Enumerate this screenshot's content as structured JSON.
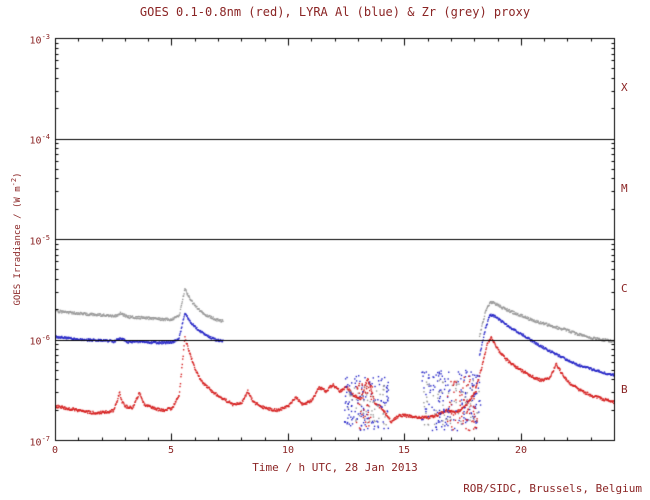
{
  "footer": "ROB/SIDC, Brussels, Belgium",
  "chart_data": {
    "type": "scatter",
    "title": "GOES 0.1-0.8nm (red), LYRA Al (blue) & Zr (grey) proxy",
    "xlabel": "Time / h UTC, 28 Jan 2013",
    "ylabel_pre": "GOES Irradiance / (W m",
    "ylabel_sup": "-2",
    "ylabel_post": ")",
    "xlim": [
      0,
      24
    ],
    "ylim_log10": [
      -7,
      -3
    ],
    "x_major_ticks": [
      0,
      5,
      10,
      15,
      20
    ],
    "x_minor_step": 1,
    "y_ticks": [
      {
        "base": "10",
        "exp": "-3"
      },
      {
        "base": "10",
        "exp": "-4"
      },
      {
        "base": "10",
        "exp": "-5"
      },
      {
        "base": "10",
        "exp": "-6"
      },
      {
        "base": "10",
        "exp": "-7"
      }
    ],
    "hlines_log10": [
      -4,
      -5,
      -6
    ],
    "flare_classes": [
      {
        "label": "X"
      },
      {
        "label": "M"
      },
      {
        "label": "C"
      },
      {
        "label": "B"
      }
    ],
    "colors": {
      "goes": "#d62020",
      "al": "#2929c8",
      "zr": "#9a9a9a",
      "text": "#8b2525",
      "axis": "#000000"
    },
    "series": [
      {
        "name": "GOES 0.1-0.8nm",
        "color_key": "goes",
        "jitter": 0.014,
        "segments": [
          [
            [
              0,
              2.2e-07
            ],
            [
              0.5,
              2.1e-07
            ],
            [
              1,
              2e-07
            ],
            [
              1.5,
              1.9e-07
            ],
            [
              2,
              1.9e-07
            ],
            [
              2.5,
              2e-07
            ],
            [
              2.75,
              3e-07
            ],
            [
              2.85,
              2.4e-07
            ],
            [
              3.0,
              2.2e-07
            ],
            [
              3.3,
              2.1e-07
            ],
            [
              3.6,
              3e-07
            ],
            [
              3.8,
              2.3e-07
            ],
            [
              4.2,
              2.1e-07
            ],
            [
              4.6,
              2e-07
            ],
            [
              5.0,
              2.1e-07
            ],
            [
              5.3,
              2.8e-07
            ],
            [
              5.55,
              1.06e-06
            ],
            [
              5.75,
              7.5e-07
            ],
            [
              6.0,
              5e-07
            ],
            [
              6.3,
              3.8e-07
            ],
            [
              6.7,
              3.1e-07
            ],
            [
              7.1,
              2.7e-07
            ],
            [
              7.6,
              2.3e-07
            ],
            [
              8.0,
              2.4e-07
            ],
            [
              8.25,
              3.1e-07
            ],
            [
              8.5,
              2.4e-07
            ],
            [
              9.0,
              2.1e-07
            ],
            [
              9.5,
              2e-07
            ],
            [
              10.0,
              2.2e-07
            ],
            [
              10.3,
              2.7e-07
            ],
            [
              10.6,
              2.3e-07
            ],
            [
              11.0,
              2.5e-07
            ],
            [
              11.3,
              3.4e-07
            ],
            [
              11.6,
              3.1e-07
            ],
            [
              11.9,
              3.6e-07
            ],
            [
              12.2,
              3.1e-07
            ],
            [
              12.5,
              3.4e-07
            ],
            [
              12.8,
              2.8e-07
            ],
            [
              13.1,
              2.6e-07
            ],
            [
              13.4,
              4.2e-07
            ],
            [
              13.7,
              2.4e-07
            ],
            [
              14.0,
              2.1e-07
            ],
            [
              14.4,
              1.55e-07
            ],
            [
              14.8,
              1.8e-07
            ],
            [
              15.2,
              1.75e-07
            ],
            [
              15.6,
              1.7e-07
            ],
            [
              16.0,
              1.7e-07
            ],
            [
              16.4,
              1.8e-07
            ],
            [
              16.8,
              2e-07
            ],
            [
              17.2,
              1.9e-07
            ],
            [
              17.6,
              2.2e-07
            ],
            [
              18.0,
              3e-07
            ],
            [
              18.3,
              5.5e-07
            ],
            [
              18.55,
              9.5e-07
            ],
            [
              18.7,
              1.06e-06
            ],
            [
              19.0,
              8e-07
            ],
            [
              19.3,
              6.6e-07
            ],
            [
              19.7,
              5.5e-07
            ],
            [
              20.0,
              5e-07
            ],
            [
              20.4,
              4.4e-07
            ],
            [
              20.8,
              4e-07
            ],
            [
              21.2,
              4.1e-07
            ],
            [
              21.5,
              5.8e-07
            ],
            [
              21.8,
              4.4e-07
            ],
            [
              22.1,
              3.7e-07
            ],
            [
              22.5,
              3.2e-07
            ],
            [
              23.0,
              2.8e-07
            ],
            [
              23.5,
              2.6e-07
            ],
            [
              24,
              2.4e-07
            ]
          ]
        ]
      },
      {
        "name": "LYRA Al proxy",
        "color_key": "al",
        "jitter": 0.011,
        "segments": [
          [
            [
              0,
              1.08e-06
            ],
            [
              0.5,
              1.05e-06
            ],
            [
              1,
              1.02e-06
            ],
            [
              1.5,
              1e-06
            ],
            [
              2,
              1e-06
            ],
            [
              2.5,
              9.7e-07
            ],
            [
              2.8,
              1.05e-06
            ],
            [
              3.1,
              9.6e-07
            ],
            [
              3.6,
              9.7e-07
            ],
            [
              4.0,
              9.5e-07
            ],
            [
              4.5,
              9.4e-07
            ],
            [
              5.0,
              9.5e-07
            ],
            [
              5.3,
              1.05e-06
            ],
            [
              5.55,
              1.85e-06
            ],
            [
              5.8,
              1.5e-06
            ],
            [
              6.1,
              1.28e-06
            ],
            [
              6.5,
              1.1e-06
            ],
            [
              6.9,
              1e-06
            ],
            [
              7.2,
              9.8e-07
            ]
          ],
          [
            [
              18.2,
              7e-07
            ],
            [
              18.45,
              1.3e-06
            ],
            [
              18.65,
              1.8e-06
            ],
            [
              18.9,
              1.7e-06
            ],
            [
              19.2,
              1.5e-06
            ],
            [
              19.6,
              1.3e-06
            ],
            [
              20.0,
              1.15e-06
            ],
            [
              20.4,
              1e-06
            ],
            [
              20.8,
              8.8e-07
            ],
            [
              21.2,
              7.8e-07
            ],
            [
              21.6,
              7e-07
            ],
            [
              22.0,
              6.3e-07
            ],
            [
              22.4,
              5.7e-07
            ],
            [
              22.8,
              5.3e-07
            ],
            [
              23.2,
              5e-07
            ],
            [
              23.6,
              4.7e-07
            ],
            [
              24,
              4.5e-07
            ]
          ]
        ]
      },
      {
        "name": "LYRA Zr proxy",
        "color_key": "zr",
        "jitter": 0.013,
        "segments": [
          [
            [
              0,
              1.95e-06
            ],
            [
              0.5,
              1.9e-06
            ],
            [
              1,
              1.85e-06
            ],
            [
              1.5,
              1.8e-06
            ],
            [
              2,
              1.78e-06
            ],
            [
              2.5,
              1.72e-06
            ],
            [
              2.8,
              1.85e-06
            ],
            [
              3.1,
              1.7e-06
            ],
            [
              3.6,
              1.68e-06
            ],
            [
              4.0,
              1.65e-06
            ],
            [
              4.5,
              1.62e-06
            ],
            [
              5.0,
              1.6e-06
            ],
            [
              5.3,
              1.75e-06
            ],
            [
              5.55,
              3.2e-06
            ],
            [
              5.8,
              2.5e-06
            ],
            [
              6.1,
              2.05e-06
            ],
            [
              6.5,
              1.75e-06
            ],
            [
              6.9,
              1.6e-06
            ],
            [
              7.2,
              1.55e-06
            ]
          ],
          [
            [
              18.2,
              1.1e-06
            ],
            [
              18.45,
              1.9e-06
            ],
            [
              18.65,
              2.4e-06
            ],
            [
              18.9,
              2.3e-06
            ],
            [
              19.2,
              2.1e-06
            ],
            [
              19.6,
              1.9e-06
            ],
            [
              20.0,
              1.75e-06
            ],
            [
              20.4,
              1.6e-06
            ],
            [
              20.8,
              1.5e-06
            ],
            [
              21.2,
              1.4e-06
            ],
            [
              21.6,
              1.32e-06
            ],
            [
              22.0,
              1.25e-06
            ],
            [
              22.4,
              1.15e-06
            ],
            [
              22.8,
              1.08e-06
            ],
            [
              23.2,
              1.03e-06
            ],
            [
              23.6,
              1e-06
            ],
            [
              24,
              9.7e-07
            ]
          ]
        ]
      }
    ],
    "noise_clusters": [
      {
        "color_key": "al",
        "t0": 12.4,
        "t1": 14.3,
        "log10_min": -6.9,
        "log10_max": -6.35,
        "n": 130
      },
      {
        "color_key": "zr",
        "t0": 12.5,
        "t1": 14.2,
        "log10_min": -6.85,
        "log10_max": -6.45,
        "n": 60
      },
      {
        "color_key": "goes",
        "t0": 12.9,
        "t1": 13.6,
        "log10_min": -6.9,
        "log10_max": -6.4,
        "n": 45
      },
      {
        "color_key": "al",
        "t0": 15.7,
        "t1": 18.25,
        "log10_min": -6.9,
        "log10_max": -6.3,
        "n": 170
      },
      {
        "color_key": "zr",
        "t0": 15.8,
        "t1": 18.2,
        "log10_min": -6.85,
        "log10_max": -6.4,
        "n": 70
      },
      {
        "color_key": "goes",
        "t0": 16.8,
        "t1": 18.2,
        "log10_min": -6.9,
        "log10_max": -6.35,
        "n": 75
      }
    ]
  }
}
